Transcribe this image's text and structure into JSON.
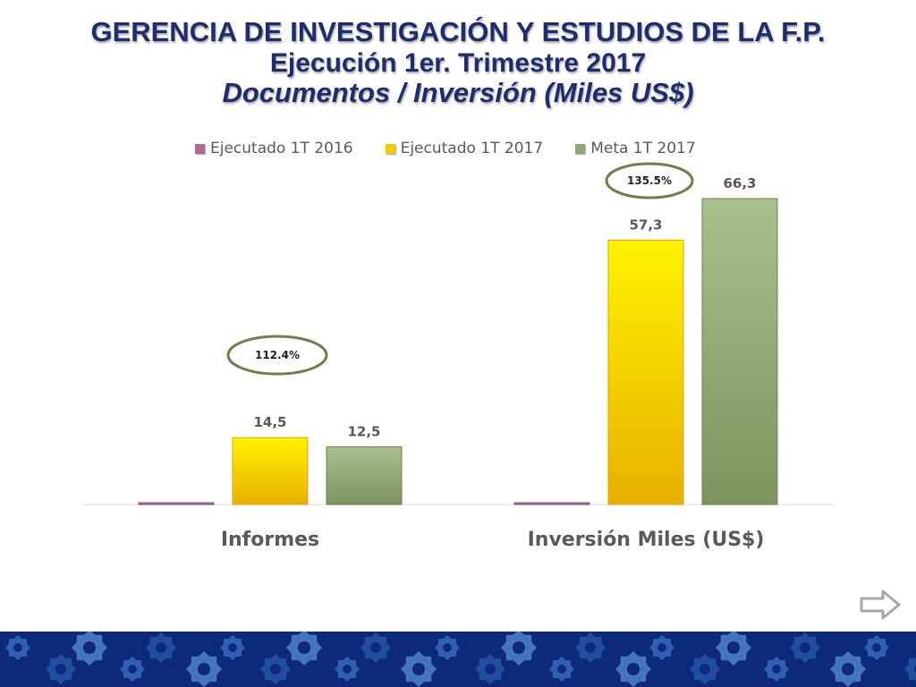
{
  "header": {
    "title_line1": "GERENCIA DE INVESTIGACIÓN Y ESTUDIOS DE LA F.P.",
    "title_line2": "Ejecución 1er. Trimestre 2017",
    "title_line3": "Documentos / Inversión (Miles US$)"
  },
  "colors": {
    "title": "#1f2d6e",
    "series_2016": "#b06a8c",
    "series_2017": "#f5cc00",
    "series_meta": "#8fa770",
    "ellipse": "#6f7f4f",
    "footer": "#0d2a7a"
  },
  "chart_data": {
    "type": "bar",
    "categories": [
      "Informes",
      "Inversión Miles (US$)"
    ],
    "series": [
      {
        "name": "Ejecutado 1T 2016",
        "values": [
          0,
          0
        ],
        "labels": [
          "",
          ""
        ]
      },
      {
        "name": "Ejecutado 1T 2017",
        "values": [
          14.5,
          57.3
        ],
        "labels": [
          "14,5",
          "57,3"
        ]
      },
      {
        "name": "Meta 1T 2017",
        "values": [
          12.5,
          66.3
        ],
        "labels": [
          "12,5",
          "66,3"
        ]
      }
    ],
    "annotations": [
      "112.4%",
      "135.5%"
    ],
    "ylim": [
      0,
      70
    ],
    "legend_position": "top",
    "grid": false
  },
  "nav": {
    "next_icon": "right-arrow-icon"
  },
  "footer": {
    "pattern_icon": "gear-icon"
  }
}
